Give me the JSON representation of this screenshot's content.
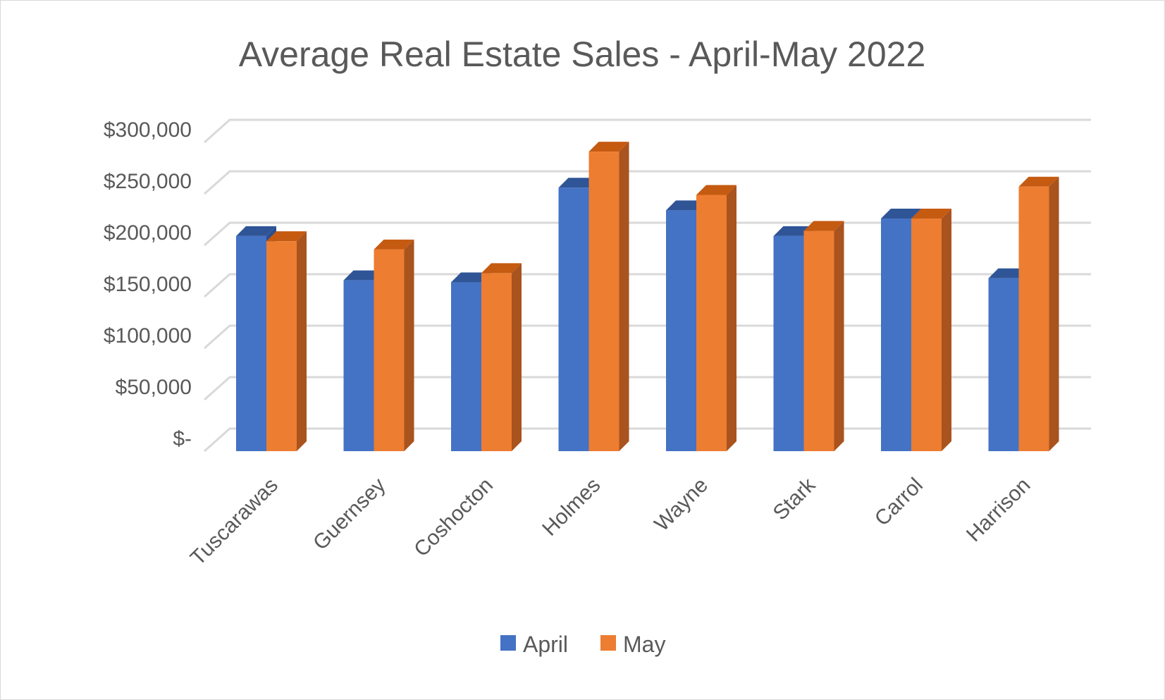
{
  "chart_data": {
    "type": "bar",
    "title": "Average Real Estate Sales - April-May 2022",
    "categories": [
      "Tuscarawas",
      "Guernsey",
      "Coshocton",
      "Holmes",
      "Wayne",
      "Stark",
      "Carrol",
      "Harrison"
    ],
    "series": [
      {
        "name": "April",
        "values": [
          209000,
          166000,
          164000,
          256000,
          234000,
          209000,
          226000,
          168000
        ]
      },
      {
        "name": "May",
        "values": [
          204000,
          196000,
          173000,
          291000,
          249000,
          214000,
          226000,
          257000
        ]
      }
    ],
    "ylim": [
      0,
      300000
    ],
    "yticks": [
      {
        "value": 0,
        "label": "$-"
      },
      {
        "value": 50000,
        "label": "$50,000"
      },
      {
        "value": 100000,
        "label": "$100,000"
      },
      {
        "value": 150000,
        "label": "$150,000"
      },
      {
        "value": 200000,
        "label": "$200,000"
      },
      {
        "value": 250000,
        "label": "$250,000"
      },
      {
        "value": 300000,
        "label": "$300,000"
      }
    ],
    "grid": true,
    "style": "3d-clustered-column",
    "legend": "bottom",
    "colors": {
      "April": {
        "front": "#4472C4",
        "top": "#2F5597",
        "side": "#2B4F8E"
      },
      "May": {
        "front": "#ED7D31",
        "top": "#C55A11",
        "side": "#A9531E"
      },
      "grid": "#D9D9D9",
      "text": "#595959"
    }
  }
}
